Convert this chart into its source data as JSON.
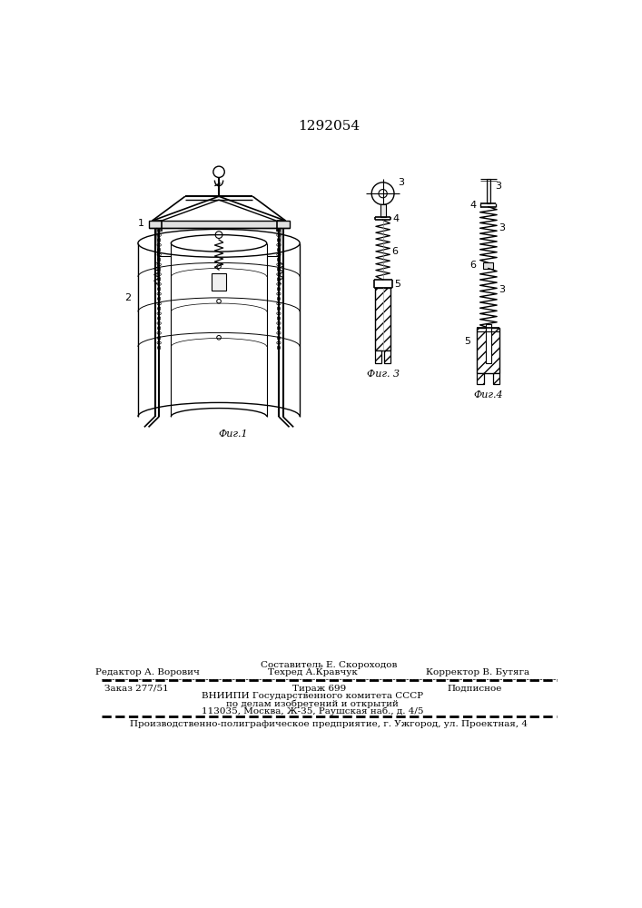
{
  "patent_number": "1292054",
  "bg_color": "#ffffff",
  "fig_label1": "Фиг.1",
  "fig_label3": "Фиг. 3",
  "fig_label4": "Фиг.4",
  "footer_line1_left": "Редактор А. Ворович",
  "footer_line1_center": "Техред А.Кравчук",
  "footer_line1_center_top": "Составитель Е. Скороходов",
  "footer_line1_right": "Корректор В. Бутяга",
  "footer_line2_col1": "Заказ 277/51",
  "footer_line2_col2": "Тираж 699",
  "footer_line2_col3": "Подписное",
  "footer_line3": "ВНИИПИ Государственного комитета СССР",
  "footer_line4": "по делам изобретений и открытий",
  "footer_line5": "113035, Москва, Ж-35, Раушская наб., д. 4/5",
  "footer_line6": "Производственно-полиграфическое предприятие, г. Ужгород, ул. Проектная, 4",
  "text_color": "#000000",
  "line_color": "#000000"
}
